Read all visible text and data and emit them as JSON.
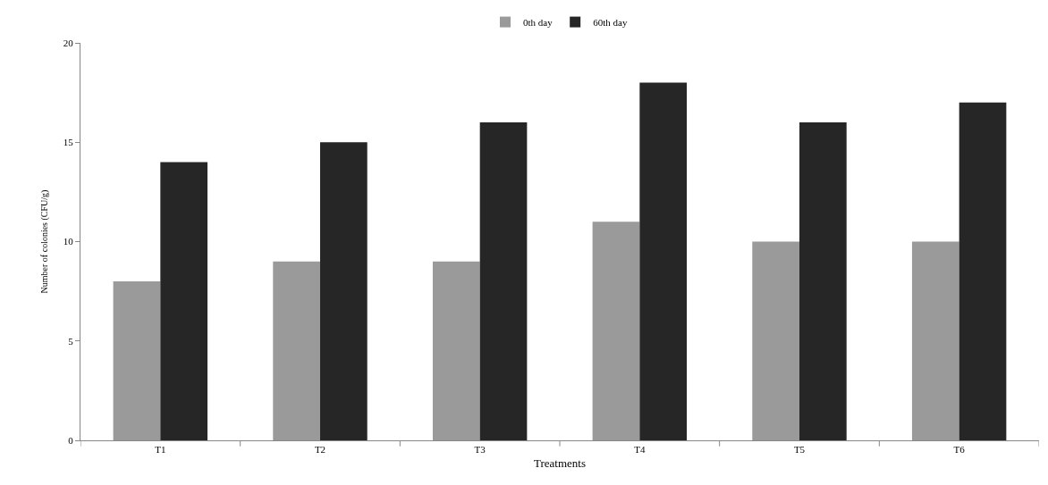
{
  "chart_data": {
    "type": "bar",
    "xlabel": "Treatments",
    "ylabel": "Number of colonies (CFU/g)",
    "categories": [
      "T1",
      "T2",
      "T3",
      "T4",
      "T5",
      "T6"
    ],
    "series": [
      {
        "name": "0th day",
        "color": "#9a9a9a",
        "values": [
          8,
          9,
          9,
          11,
          10,
          10
        ]
      },
      {
        "name": "60th day",
        "color": "#262626",
        "values": [
          14,
          15,
          16,
          18,
          16,
          17
        ]
      }
    ],
    "ylim": [
      0,
      20
    ],
    "yticks": [
      0,
      5,
      10,
      15,
      20
    ],
    "legend": "top"
  }
}
